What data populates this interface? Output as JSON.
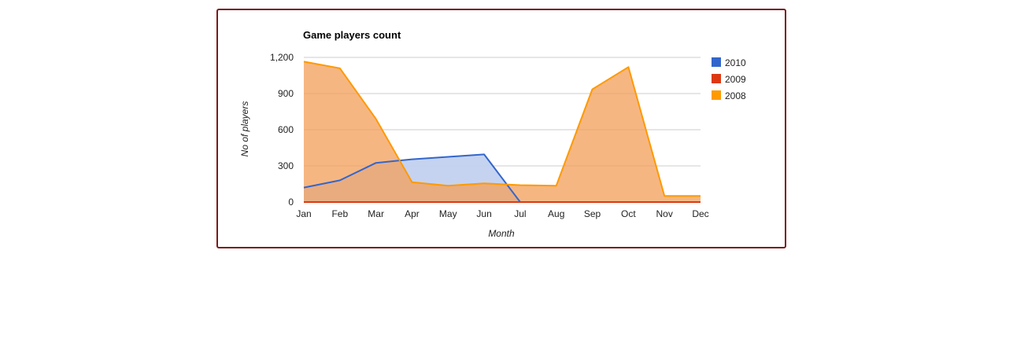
{
  "chart_data": {
    "type": "area",
    "title": "Game players count",
    "xlabel": "Month",
    "ylabel": "No of players",
    "categories": [
      "Jan",
      "Feb",
      "Mar",
      "Apr",
      "May",
      "Jun",
      "Jul",
      "Aug",
      "Sep",
      "Oct",
      "Nov",
      "Dec"
    ],
    "ylim": [
      0,
      1200
    ],
    "yticks": [
      "0",
      "300",
      "600",
      "900",
      "1,200"
    ],
    "ytick_values": [
      0,
      300,
      600,
      900,
      1200
    ],
    "grid": true,
    "legend_position": "right",
    "series": [
      {
        "name": "2010",
        "color": "#3366cc",
        "fill": "#c2d1f0",
        "values": [
          120,
          180,
          325,
          355,
          375,
          395,
          0,
          0,
          0,
          0,
          0,
          0
        ]
      },
      {
        "name": "2009",
        "color": "#dc3912",
        "fill": "#f3b6a4",
        "values": [
          0,
          0,
          0,
          0,
          0,
          0,
          0,
          0,
          0,
          0,
          0,
          0
        ]
      },
      {
        "name": "2008",
        "color": "#ff9900",
        "fill": "#f4a25f",
        "values": [
          1165,
          1110,
          690,
          165,
          135,
          155,
          140,
          135,
          935,
          1120,
          50,
          50
        ]
      }
    ]
  }
}
